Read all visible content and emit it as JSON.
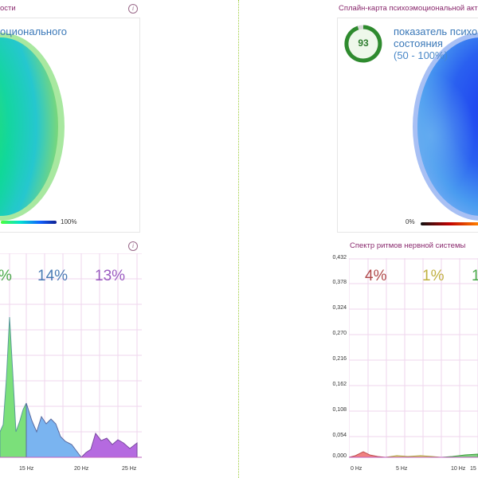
{
  "left": {
    "top_title": "ости",
    "map_label": "оционального",
    "scale_max": "100%",
    "spectrum_percents": [
      "%",
      "14%",
      "13%"
    ],
    "spectrum_ticks": [
      "15 Hz",
      "20 Hz",
      "25 Hz"
    ],
    "info_icon": "info-icon"
  },
  "right": {
    "top_title": "Сплайн-карта психоэмоциональной акт",
    "score": "93",
    "indicator_line1": "показатель психо",
    "indicator_line2": "состояния",
    "indicator_range": "(50 - 100%)",
    "scale_min": "0%",
    "spectrum_title": "Спектр ритмов нервной системы",
    "spectrum_percents": [
      "4%",
      "1%",
      "1"
    ],
    "y_ticks": [
      "0,432",
      "0,378",
      "0,324",
      "0,270",
      "0,216",
      "0,162",
      "0,108",
      "0,054",
      "0,000"
    ],
    "x_ticks": [
      "0 Hz",
      "5 Hz",
      "10 Hz",
      "15"
    ],
    "accent": "#2e8b2e"
  }
}
